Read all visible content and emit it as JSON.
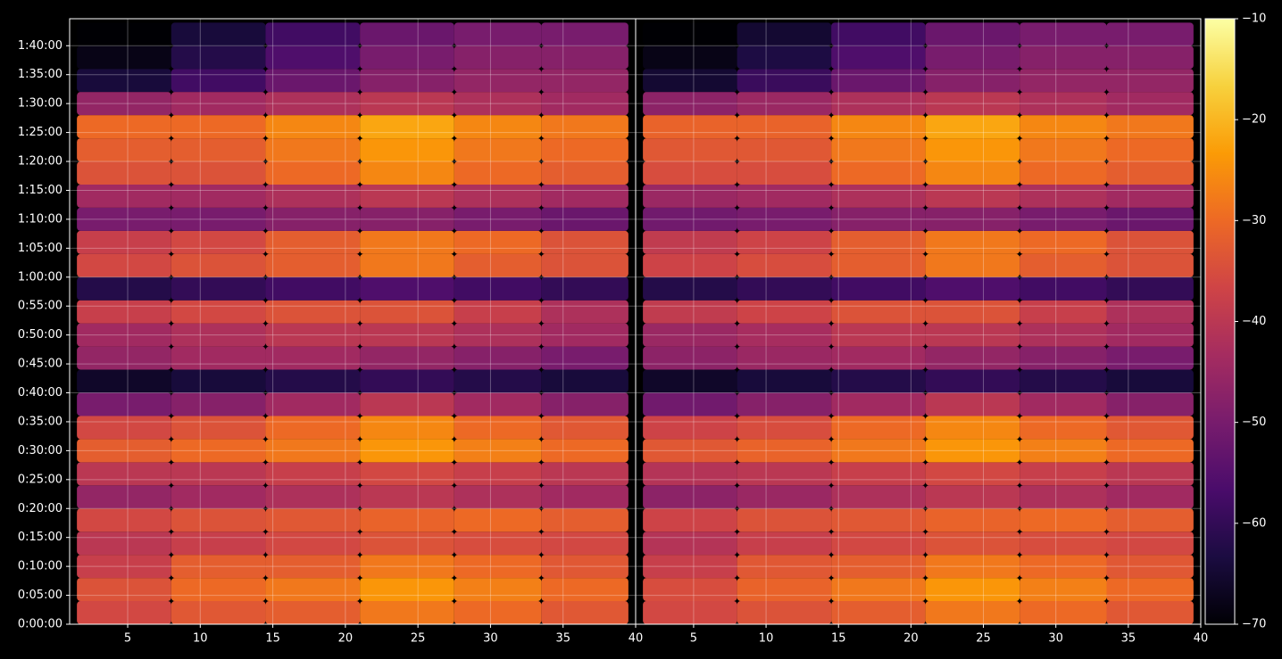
{
  "chart_data": [
    {
      "type": "heatmap",
      "x_bins": [
        1.5,
        8,
        14.5,
        21,
        27.5,
        33.5,
        39.5
      ],
      "y_bins": [
        0,
        240,
        480,
        720,
        960,
        1200,
        1440,
        1680,
        1920,
        2160,
        2400,
        2640,
        2880,
        3120,
        3360,
        3600,
        3840,
        4080,
        4320,
        4560,
        4800,
        5040,
        5280,
        5520,
        5760,
        6000,
        6240
      ],
      "z": [
        [
          -36,
          -33,
          -32,
          -28,
          -30,
          -33
        ],
        [
          -34,
          -30,
          -28,
          -24,
          -27,
          -30
        ],
        [
          -38,
          -32,
          -32,
          -28,
          -30,
          -33
        ],
        [
          -40,
          -38,
          -36,
          -34,
          -35,
          -36
        ],
        [
          -36,
          -34,
          -33,
          -31,
          -30,
          -32
        ],
        [
          -46,
          -44,
          -42,
          -40,
          -42,
          -44
        ],
        [
          -40,
          -40,
          -38,
          -36,
          -38,
          -40
        ],
        [
          -32,
          -30,
          -28,
          -24,
          -27,
          -30
        ],
        [
          -36,
          -34,
          -30,
          -26,
          -30,
          -33
        ],
        [
          -50,
          -48,
          -44,
          -40,
          -44,
          -48
        ],
        [
          -66,
          -64,
          -62,
          -60,
          -62,
          -64
        ],
        [
          -46,
          -44,
          -44,
          -46,
          -48,
          -50
        ],
        [
          -44,
          -42,
          -40,
          -40,
          -42,
          -44
        ],
        [
          -38,
          -36,
          -34,
          -34,
          -38,
          -42
        ],
        [
          -62,
          -60,
          -58,
          -56,
          -58,
          -60
        ],
        [
          -36,
          -34,
          -32,
          -28,
          -32,
          -34
        ],
        [
          -38,
          -36,
          -32,
          -28,
          -30,
          -34
        ],
        [
          -50,
          -50,
          -48,
          -48,
          -50,
          -52
        ],
        [
          -44,
          -44,
          -42,
          -40,
          -42,
          -44
        ],
        [
          -34,
          -34,
          -30,
          -26,
          -30,
          -32
        ],
        [
          -32,
          -32,
          -28,
          -24,
          -28,
          -30
        ],
        [
          -30,
          -30,
          -26,
          -22,
          -26,
          -28
        ],
        [
          -46,
          -44,
          -42,
          -40,
          -42,
          -44
        ],
        [
          -64,
          -58,
          -52,
          -48,
          -46,
          -46
        ],
        [
          -68,
          -62,
          -56,
          -50,
          -48,
          -48
        ],
        [
          -70,
          -64,
          -58,
          -52,
          -50,
          -50
        ]
      ],
      "xlim": [
        1,
        40
      ],
      "xticks": [
        5,
        10,
        15,
        20,
        25,
        30,
        35,
        40
      ],
      "ylim": [
        0,
        6280
      ],
      "yticks": [
        {
          "value": 0,
          "label": "0:00:00"
        },
        {
          "value": 300,
          "label": "0:05:00"
        },
        {
          "value": 600,
          "label": "0:10:00"
        },
        {
          "value": 900,
          "label": "0:15:00"
        },
        {
          "value": 1200,
          "label": "0:20:00"
        },
        {
          "value": 1500,
          "label": "0:25:00"
        },
        {
          "value": 1800,
          "label": "0:30:00"
        },
        {
          "value": 2100,
          "label": "0:35:00"
        },
        {
          "value": 2400,
          "label": "0:40:00"
        },
        {
          "value": 2700,
          "label": "0:45:00"
        },
        {
          "value": 3000,
          "label": "0:50:00"
        },
        {
          "value": 3300,
          "label": "0:55:00"
        },
        {
          "value": 3600,
          "label": "1:00:00"
        },
        {
          "value": 3900,
          "label": "1:05:00"
        },
        {
          "value": 4200,
          "label": "1:10:00"
        },
        {
          "value": 4500,
          "label": "1:15:00"
        },
        {
          "value": 4800,
          "label": "1:20:00"
        },
        {
          "value": 5100,
          "label": "1:25:00"
        },
        {
          "value": 5400,
          "label": "1:30:00"
        },
        {
          "value": 5700,
          "label": "1:35:00"
        },
        {
          "value": 6000,
          "label": "1:40:00"
        }
      ],
      "grid": true
    },
    {
      "type": "heatmap",
      "x_bins": [
        1.5,
        8,
        14.5,
        21,
        27.5,
        33.5,
        39.5
      ],
      "y_bins": [
        0,
        240,
        480,
        720,
        960,
        1200,
        1440,
        1680,
        1920,
        2160,
        2400,
        2640,
        2880,
        3120,
        3360,
        3600,
        3840,
        4080,
        4320,
        4560,
        4800,
        5040,
        5280,
        5520,
        5760,
        6000,
        6240
      ],
      "z": [
        [
          -36,
          -34,
          -32,
          -28,
          -30,
          -33
        ],
        [
          -35,
          -31,
          -28,
          -24,
          -27,
          -30
        ],
        [
          -38,
          -33,
          -32,
          -28,
          -30,
          -33
        ],
        [
          -41,
          -38,
          -36,
          -34,
          -35,
          -36
        ],
        [
          -37,
          -34,
          -33,
          -31,
          -30,
          -32
        ],
        [
          -47,
          -45,
          -42,
          -40,
          -42,
          -44
        ],
        [
          -41,
          -40,
          -38,
          -36,
          -38,
          -40
        ],
        [
          -33,
          -31,
          -28,
          -24,
          -27,
          -30
        ],
        [
          -37,
          -35,
          -30,
          -26,
          -30,
          -33
        ],
        [
          -51,
          -48,
          -44,
          -40,
          -44,
          -48
        ],
        [
          -66,
          -64,
          -62,
          -60,
          -62,
          -64
        ],
        [
          -47,
          -45,
          -44,
          -46,
          -48,
          -50
        ],
        [
          -45,
          -43,
          -40,
          -40,
          -42,
          -44
        ],
        [
          -39,
          -37,
          -34,
          -34,
          -38,
          -42
        ],
        [
          -62,
          -60,
          -58,
          -56,
          -58,
          -60
        ],
        [
          -37,
          -35,
          -32,
          -28,
          -32,
          -34
        ],
        [
          -39,
          -37,
          -32,
          -28,
          -30,
          -34
        ],
        [
          -51,
          -50,
          -48,
          -48,
          -50,
          -52
        ],
        [
          -45,
          -44,
          -42,
          -40,
          -42,
          -44
        ],
        [
          -35,
          -35,
          -30,
          -26,
          -30,
          -32
        ],
        [
          -33,
          -33,
          -28,
          -24,
          -28,
          -30
        ],
        [
          -31,
          -31,
          -26,
          -22,
          -26,
          -28
        ],
        [
          -47,
          -45,
          -42,
          -40,
          -42,
          -44
        ],
        [
          -65,
          -59,
          -52,
          -48,
          -46,
          -46
        ],
        [
          -68,
          -63,
          -56,
          -50,
          -48,
          -48
        ],
        [
          -70,
          -65,
          -58,
          -52,
          -50,
          -50
        ]
      ],
      "xlim": [
        1,
        40
      ],
      "xticks": [
        5,
        10,
        15,
        20,
        25,
        30,
        35,
        40
      ],
      "ylim": [
        0,
        6280
      ],
      "grid": true
    }
  ],
  "colorbar": {
    "lim": [
      -70,
      -10
    ],
    "ticks": [
      {
        "value": -70,
        "label": "−70"
      },
      {
        "value": -60,
        "label": "−60"
      },
      {
        "value": -50,
        "label": "−50"
      },
      {
        "value": -40,
        "label": "−40"
      },
      {
        "value": -30,
        "label": "−30"
      },
      {
        "value": -20,
        "label": "−20"
      },
      {
        "value": -10,
        "label": "−10"
      }
    ],
    "colormap": [
      "#000004",
      "#1b0c41",
      "#4a0c6b",
      "#781c6d",
      "#a52c60",
      "#cf4446",
      "#ed6925",
      "#fb9b06",
      "#f7d13d",
      "#fcffa4"
    ]
  }
}
